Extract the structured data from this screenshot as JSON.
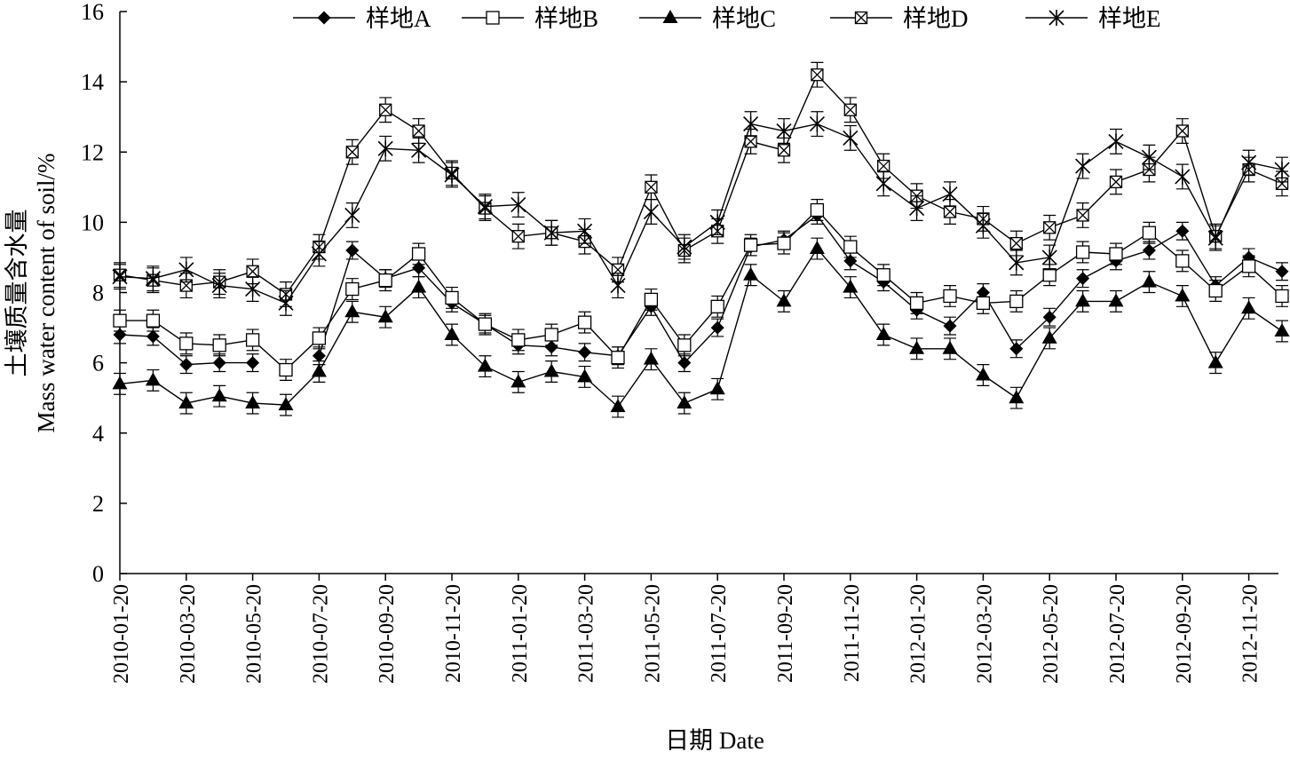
{
  "chart_data": {
    "type": "line",
    "xlabel": "日期 Date",
    "ylabel_cn": "土壤质量含水量",
    "ylabel_en": "Mass water content of soil/%",
    "ylim": [
      0,
      16
    ],
    "yticks": [
      0,
      2,
      4,
      6,
      8,
      10,
      12,
      14,
      16
    ],
    "xticks": [
      "2010-01-20",
      "2010-03-20",
      "2010-05-20",
      "2010-07-20",
      "2010-09-20",
      "2010-11-20",
      "2011-01-20",
      "2011-03-20",
      "2011-05-20",
      "2011-07-20",
      "2011-09-20",
      "2011-11-20",
      "2012-01-20",
      "2012-03-20",
      "2012-05-20",
      "2012-07-20",
      "2012-09-20",
      "2012-11-20"
    ],
    "legend_position": "top",
    "grid": false,
    "error_bars": true,
    "series": [
      {
        "name": "样地A",
        "marker": "diamond",
        "error": 0.25,
        "values": [
          6.8,
          6.75,
          5.95,
          6.0,
          6.0,
          null,
          6.2,
          9.2,
          8.4,
          8.7,
          7.7,
          7.1,
          6.5,
          6.45,
          6.3,
          6.2,
          7.6,
          6.0,
          7.0,
          9.3,
          9.5,
          10.2,
          8.9,
          8.3,
          7.5,
          7.05,
          8.0,
          6.4,
          7.3,
          8.4,
          8.9,
          9.2,
          9.75,
          8.2,
          9.0,
          8.6
        ]
      },
      {
        "name": "样地B",
        "marker": "square",
        "error": 0.3,
        "values": [
          7.2,
          7.2,
          6.55,
          6.5,
          6.65,
          5.8,
          6.7,
          8.1,
          8.35,
          9.1,
          7.85,
          7.1,
          6.65,
          6.8,
          7.15,
          6.15,
          7.8,
          6.5,
          7.6,
          9.35,
          9.4,
          10.35,
          9.3,
          8.5,
          7.7,
          7.9,
          7.7,
          7.75,
          8.5,
          9.15,
          9.1,
          9.7,
          8.9,
          8.05,
          8.75,
          7.9
        ]
      },
      {
        "name": "样地C",
        "marker": "triangle",
        "error": 0.3,
        "values": [
          5.4,
          5.5,
          4.85,
          5.05,
          4.85,
          4.8,
          5.75,
          7.45,
          7.3,
          8.15,
          6.8,
          5.9,
          5.45,
          5.75,
          5.6,
          4.75,
          6.1,
          4.85,
          5.25,
          8.5,
          7.75,
          9.25,
          8.15,
          6.8,
          6.4,
          6.4,
          5.65,
          5.0,
          6.7,
          7.75,
          7.75,
          8.3,
          7.9,
          6.0,
          7.55,
          6.9
        ]
      },
      {
        "name": "样地D",
        "marker": "boxcross",
        "error": 0.35,
        "values": [
          8.5,
          8.35,
          8.2,
          8.3,
          8.6,
          7.95,
          9.3,
          12.0,
          13.2,
          12.6,
          11.4,
          10.4,
          9.6,
          9.7,
          9.45,
          8.65,
          11.0,
          9.2,
          9.75,
          12.3,
          12.05,
          14.2,
          13.2,
          11.6,
          10.75,
          10.3,
          10.1,
          9.4,
          9.85,
          10.2,
          11.15,
          11.5,
          12.6,
          9.6,
          11.5,
          11.1
        ]
      },
      {
        "name": "样地E",
        "marker": "asterisk",
        "error": 0.35,
        "values": [
          8.45,
          8.4,
          8.65,
          8.2,
          8.1,
          7.7,
          9.1,
          10.2,
          12.1,
          12.05,
          11.35,
          10.45,
          10.5,
          9.7,
          9.75,
          8.2,
          10.3,
          9.3,
          10.0,
          12.8,
          12.6,
          12.8,
          12.4,
          11.1,
          10.4,
          10.8,
          9.9,
          8.85,
          9.0,
          11.6,
          12.3,
          11.85,
          11.3,
          9.55,
          11.7,
          11.5
        ]
      }
    ]
  }
}
